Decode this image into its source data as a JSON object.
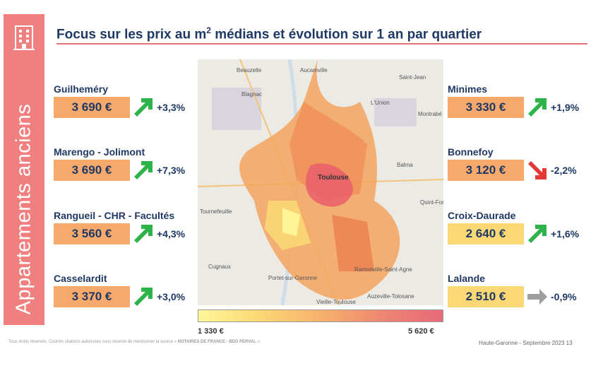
{
  "sidebar": {
    "label": "Appartements anciens",
    "icon": "building-icon"
  },
  "title": {
    "prefix": "Focus sur les prix au m",
    "sup": "2",
    "suffix": " médians et évolution sur 1 an par quartier"
  },
  "colors": {
    "accent": "#f08080",
    "price_orange": "#f6a96b",
    "price_yellow": "#fbd874",
    "up_arrow": "#2db34a",
    "down_arrow": "#e53935",
    "flat_arrow": "#9e9e9e"
  },
  "left": [
    {
      "name": "Guilheméry",
      "price": "3 690 €",
      "evolution": "+3,3%",
      "trend": "up"
    },
    {
      "name": "Marengo - Jolimont",
      "price": "3 690 €",
      "evolution": "+7,3%",
      "trend": "up"
    },
    {
      "name": "Rangueil - CHR - Facultés",
      "price": "3 560 €",
      "evolution": "+4,3%",
      "trend": "up"
    },
    {
      "name": "Casselardit",
      "price": "3 370 €",
      "evolution": "+3,0%",
      "trend": "up"
    }
  ],
  "right": [
    {
      "name": "Minimes",
      "price": "3 330 €",
      "evolution": "+1,9%",
      "trend": "up"
    },
    {
      "name": "Bonnefoy",
      "price": "3 120 €",
      "evolution": "-2,2%",
      "trend": "down"
    },
    {
      "name": "Croix-Daurade",
      "price": "2 640 €",
      "evolution": "+1,6%",
      "trend": "up"
    },
    {
      "name": "Lalande",
      "price": "2 510 €",
      "evolution": "-0,9%",
      "trend": "flat"
    }
  ],
  "map": {
    "center_label": "Toulouse",
    "places": [
      "Beauzelle",
      "Aucamville",
      "Saint-Jean",
      "Blagnac",
      "L'Union",
      "Montrabé",
      "Balma",
      "Quint-Fonsegrive",
      "Tournefeuille",
      "Cugnaux",
      "Ramonville-Saint-Agne",
      "Portet-sur-Garonne",
      "Vieille-Toulouse",
      "Auzeville-Tolosane"
    ]
  },
  "scale": {
    "min": "1 330 €",
    "max": "5 620 €"
  },
  "footer": {
    "left_text": "Tous droits réservés. Courtes citations autorisées sous réserve de mentionner la source « ",
    "left_source": "NOTAIRES DE FRANCE - BDD PERVAL",
    "left_end": " ».",
    "right_text": "Haute-Garonne - Septembre 2023   13"
  }
}
